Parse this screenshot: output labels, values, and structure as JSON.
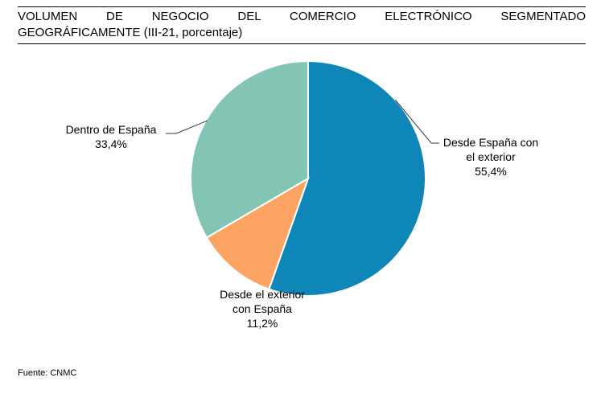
{
  "header": {
    "title_line1": "VOLUMEN DE NEGOCIO DEL COMERCIO ELECTRÓNICO SEGMENTADO",
    "title_line2": "GEOGRÁFICAMENTE (III-21, porcentaje)"
  },
  "chart_data": {
    "type": "pie",
    "title": "VOLUMEN DE NEGOCIO DEL COMERCIO ELECTRÓNICO SEGMENTADO GEOGRÁFICAMENTE (III-21, porcentaje)",
    "slices": [
      {
        "label_lines": [
          "Desde España con",
          "el exterior"
        ],
        "value": 55.4,
        "value_label": "55,4%",
        "color": "#0e86b8"
      },
      {
        "label_lines": [
          "Desde el exterior",
          "con España"
        ],
        "value": 11.2,
        "value_label": "11,2%",
        "color": "#fca464"
      },
      {
        "label_lines": [
          "Dentro de España"
        ],
        "value": 33.4,
        "value_label": "33,4%",
        "color": "#82c5b5"
      }
    ],
    "legend": "none"
  },
  "footer": {
    "source": "Fuente: CNMC"
  }
}
